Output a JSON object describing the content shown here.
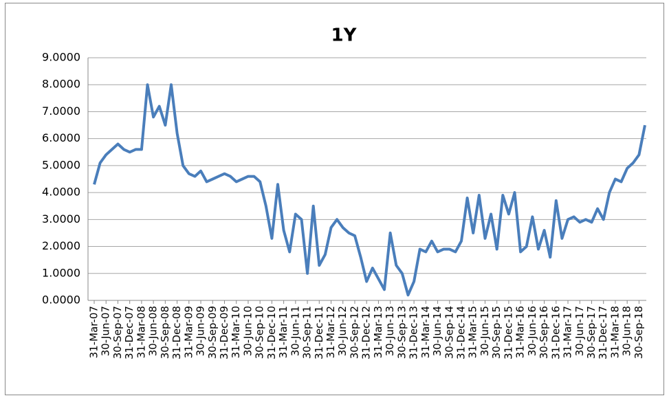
{
  "chart_data": {
    "type": "line",
    "title": "1Y",
    "categories": [
      "31-Mar-07",
      null,
      "30-Jun-07",
      null,
      "30-Sep-07",
      null,
      "31-Dec-07",
      null,
      "31-Mar-08",
      null,
      "30-Jun-08",
      null,
      "30-Sep-08",
      null,
      "31-Dec-08",
      null,
      "31-Mar-09",
      null,
      "30-Jun-09",
      null,
      "30-Sep-09",
      null,
      "31-Dec-09",
      null,
      "31-Mar-10",
      null,
      "30-Jun-10",
      null,
      "30-Sep-10",
      null,
      "31-Dec-10",
      null,
      "31-Mar-11",
      null,
      "30-Jun-11",
      null,
      "30-Sep-11",
      null,
      "31-Dec-11",
      null,
      "31-Mar-12",
      null,
      "30-Jun-12",
      null,
      "30-Sep-12",
      null,
      "31-Dec-12",
      null,
      "31-Mar-13",
      null,
      "30-Jun-13",
      null,
      "30-Sep-13",
      null,
      "31-Dec-13",
      null,
      "31-Mar-14",
      null,
      "30-Jun-14",
      null,
      "30-Sep-14",
      null,
      "31-Dec-14",
      null,
      "31-Mar-15",
      null,
      "30-Jun-15",
      null,
      "30-Sep-15",
      null,
      "31-Dec-15",
      null,
      "31-Mar-16",
      null,
      "30-Jun-16",
      null,
      "30-Sep-16",
      null,
      "31-Dec-16",
      null,
      "31-Mar-17",
      null,
      "30-Jun-17",
      null,
      "30-Sep-17",
      null,
      "31-Dec-17",
      null,
      "31-Mar-18",
      null,
      "30-Jun-18",
      null,
      "30-Sep-18",
      null
    ],
    "values": [
      4.3,
      5.1,
      5.4,
      5.6,
      5.8,
      5.6,
      5.5,
      5.6,
      5.6,
      8.0,
      6.8,
      7.2,
      6.5,
      8.0,
      6.2,
      5.0,
      4.7,
      4.6,
      4.8,
      4.4,
      4.5,
      4.6,
      4.7,
      4.6,
      4.4,
      4.5,
      4.6,
      4.6,
      4.4,
      3.5,
      2.3,
      4.3,
      2.6,
      1.8,
      3.2,
      3.0,
      1.0,
      3.5,
      1.3,
      1.7,
      2.7,
      3.0,
      2.7,
      2.5,
      2.4,
      1.6,
      0.7,
      1.2,
      0.8,
      0.4,
      2.5,
      1.3,
      1.0,
      0.2,
      0.7,
      1.9,
      1.8,
      2.2,
      1.8,
      1.9,
      1.9,
      1.8,
      2.2,
      3.8,
      2.5,
      3.9,
      2.3,
      3.2,
      1.9,
      3.9,
      3.2,
      4.0,
      1.8,
      2.0,
      3.1,
      1.9,
      2.6,
      1.6,
      3.7,
      2.3,
      3.0,
      3.1,
      2.9,
      3.0,
      2.9,
      3.4,
      3.0,
      4.0,
      4.5,
      4.4,
      4.9,
      5.1,
      5.4,
      6.5
    ],
    "color": "#4a7ebb",
    "ylim": [
      0,
      9
    ],
    "yticks": [
      {
        "value": 0,
        "label": "0.0000"
      },
      {
        "value": 1,
        "label": "1.0000"
      },
      {
        "value": 2,
        "label": "2.0000"
      },
      {
        "value": 3,
        "label": "3.0000"
      },
      {
        "value": 4,
        "label": "4.0000"
      },
      {
        "value": 5,
        "label": "5.0000"
      },
      {
        "value": 6,
        "label": "6.0000"
      },
      {
        "value": 7,
        "label": "7.0000"
      },
      {
        "value": 8,
        "label": "8.0000"
      },
      {
        "value": 9,
        "label": "9.0000"
      }
    ],
    "grid": true
  }
}
